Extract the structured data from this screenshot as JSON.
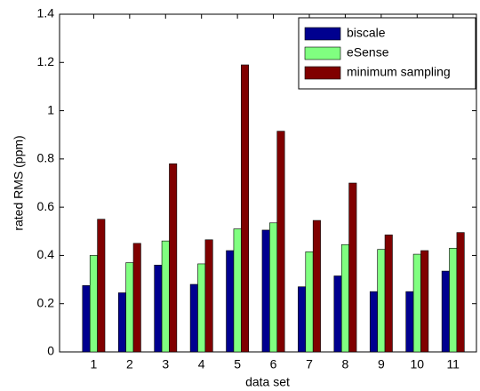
{
  "chart_data": {
    "type": "bar",
    "xlabel": "data set",
    "ylabel": "rated RMS (ppm)",
    "categories": [
      "1",
      "2",
      "3",
      "4",
      "5",
      "6",
      "7",
      "8",
      "9",
      "10",
      "11"
    ],
    "series": [
      {
        "name": "biscale",
        "color": "#00008f",
        "values": [
          0.275,
          0.245,
          0.36,
          0.28,
          0.42,
          0.505,
          0.27,
          0.315,
          0.25,
          0.25,
          0.335
        ]
      },
      {
        "name": "eSense",
        "color": "#80ff80",
        "values": [
          0.4,
          0.37,
          0.46,
          0.365,
          0.51,
          0.535,
          0.415,
          0.445,
          0.425,
          0.405,
          0.43
        ]
      },
      {
        "name": "minimum sampling",
        "color": "#800000",
        "values": [
          0.55,
          0.45,
          0.78,
          0.465,
          1.19,
          0.915,
          0.545,
          0.7,
          0.485,
          0.42,
          0.495
        ]
      }
    ],
    "ylim": [
      0,
      1.4
    ],
    "yticks": [
      0,
      0.2,
      0.4,
      0.6,
      0.8,
      1,
      1.2,
      1.4
    ],
    "grid": false,
    "legend": "northeast"
  }
}
